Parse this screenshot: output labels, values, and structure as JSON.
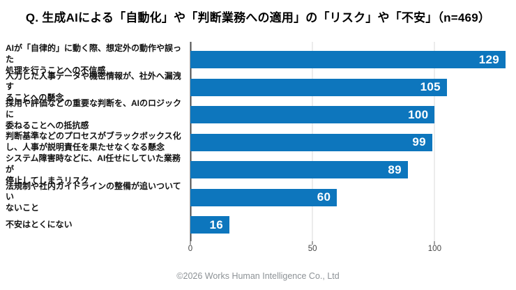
{
  "page": {
    "background_color": "#ffffff"
  },
  "header": {
    "title": "Q. 生成AIによる「自動化」や「判断業務への適用」の「リスク」や「不安」（n=469）"
  },
  "chart_data": {
    "type": "bar",
    "orientation": "horizontal",
    "title": "Q. 生成AIによる「自動化」や「判断業務への適用」の「リスク」や「不安」（n=469）",
    "sample_size": "n=469",
    "categories": [
      "AIが「自律的」に動く際、想定外の動作や誤った\n処理を行うことへの不信感",
      "入力した人事データや機密情報が、社外へ漏洩す\nることへの懸念",
      "採用や評価などの重要な判断を、AIのロジックに\n委ねることへの抵抗感",
      "判断基準などのプロセスがブラックボックス化\nし、人事が説明責任を果たせなくなる懸念",
      "システム障害時などに、AI任せにしていた業務が\n停止してしまうリスク",
      "法規制や社内ガイドラインの整備が追いついてい\nないこと",
      "不安はとくにない"
    ],
    "values": [
      129,
      105,
      100,
      99,
      89,
      60,
      16
    ],
    "xlim": [
      0,
      131
    ],
    "xticks": [
      0,
      50,
      100
    ],
    "value_labels_inside_bar": true,
    "legend": "none",
    "grid": "vertical",
    "colors": {
      "bar": "#0d76bd",
      "value_label": "#ffffff",
      "gridline": "#d9d9d9",
      "axis_line": "#4a4a4a",
      "tick_label": "#444444",
      "category_label": "#111111"
    }
  },
  "footer": {
    "copyright": "©2026 Works Human Intelligence Co., Ltd"
  }
}
